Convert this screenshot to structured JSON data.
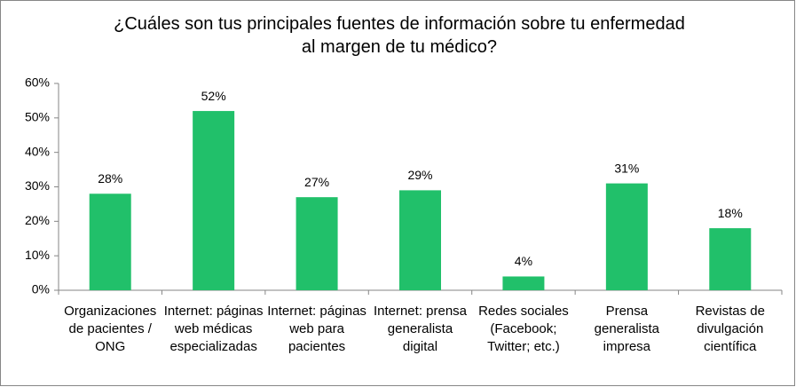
{
  "chart_data": {
    "type": "bar",
    "title": "¿Cuáles son tus principales fuentes de información sobre tu enfermedad al margen de tu médico?",
    "categories": [
      "Organizaciones de pacientes / ONG",
      "Internet: páginas web médicas especializadas",
      "Internet: páginas web para pacientes",
      "Internet: prensa generalista digital",
      "Redes sociales (Facebook; Twitter; etc.)",
      "Prensa generalista impresa",
      "Revistas de divulgación científica"
    ],
    "values": [
      28,
      52,
      27,
      29,
      4,
      31,
      18
    ],
    "value_labels": [
      "28%",
      "52%",
      "27%",
      "29%",
      "4%",
      "31%",
      "18%"
    ],
    "color": "#21c06a",
    "ylim": [
      0,
      60
    ],
    "yticks": [
      {
        "value": 0,
        "label": "0%"
      },
      {
        "value": 10,
        "label": "10%"
      },
      {
        "value": 20,
        "label": "20%"
      },
      {
        "value": 30,
        "label": "30%"
      },
      {
        "value": 40,
        "label": "40%"
      },
      {
        "value": 50,
        "label": "50%"
      },
      {
        "value": 60,
        "label": "60%"
      }
    ],
    "grid": false
  }
}
